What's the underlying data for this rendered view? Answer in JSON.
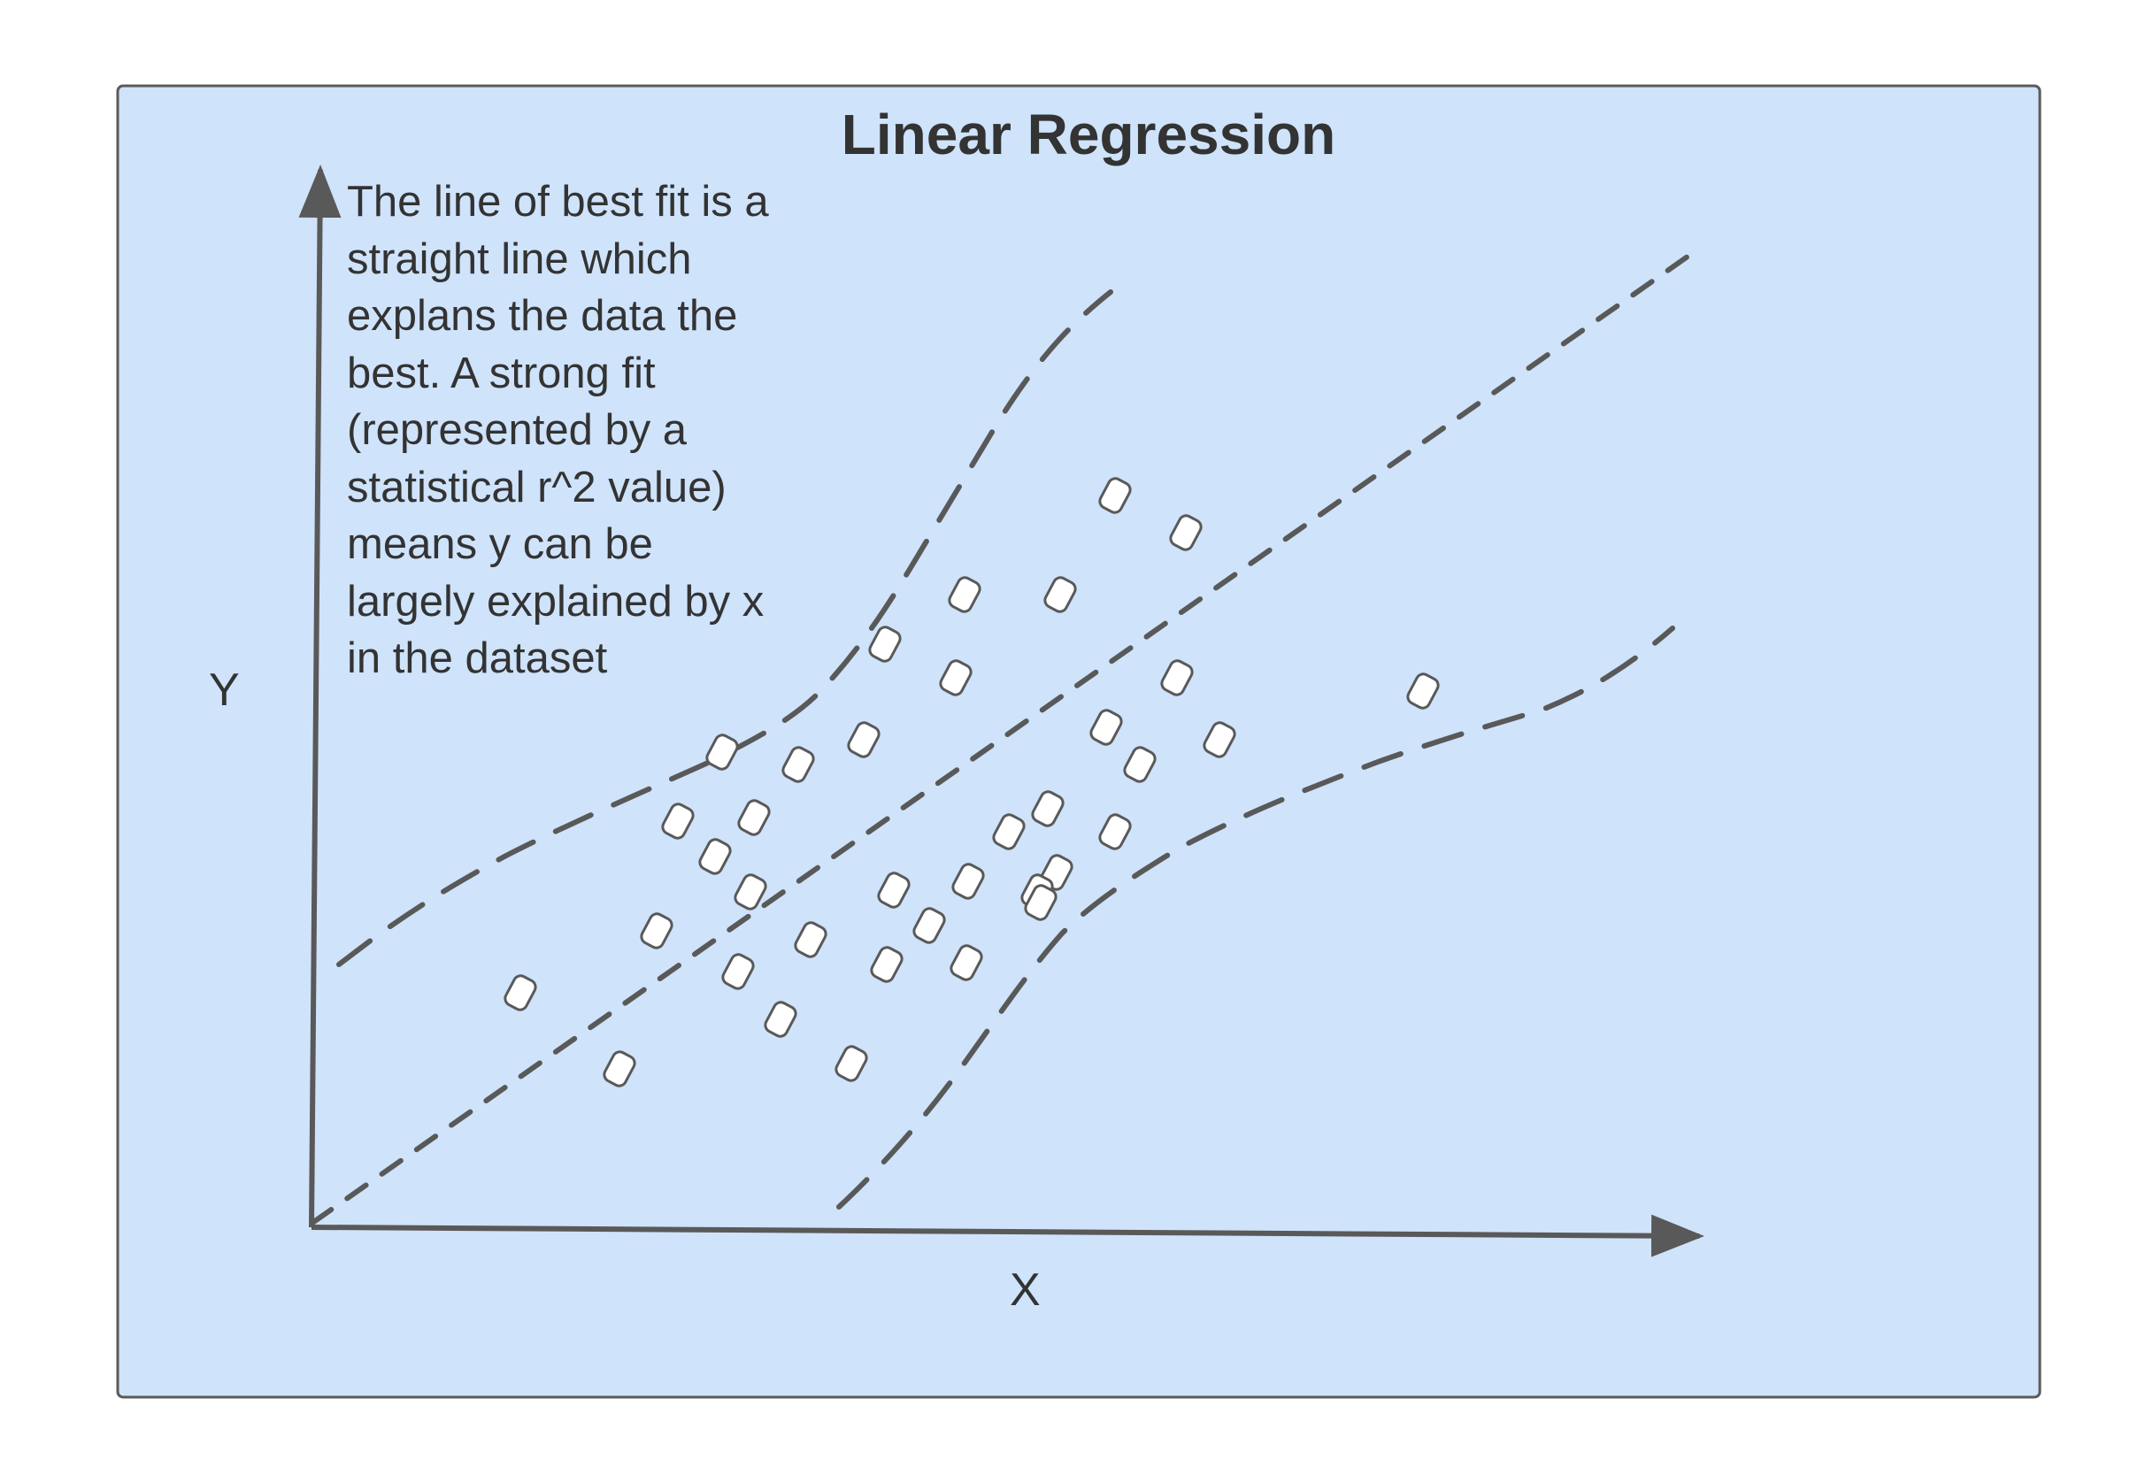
{
  "title": "Linear Regression",
  "description": [
    "The line of best fit is a",
    "straight line which",
    "explans the data the",
    "best. A strong fit",
    "(represented by a",
    "statistical r^2 value)",
    "means y can be",
    "largely explained by x",
    "in the dataset"
  ],
  "axes": {
    "x_label": "X",
    "y_label": "Y"
  },
  "colors": {
    "panel_fill": "#cfe3fb",
    "panel_border": "#5a5a5a",
    "line_color": "#595959",
    "marker_fill": "#ffffff",
    "text_color": "#333333"
  },
  "point_marker": "rounded-diamond",
  "point_count": 41,
  "lines": {
    "best_fit": "short-dashed",
    "confidence_bands": "long-dashed"
  }
}
